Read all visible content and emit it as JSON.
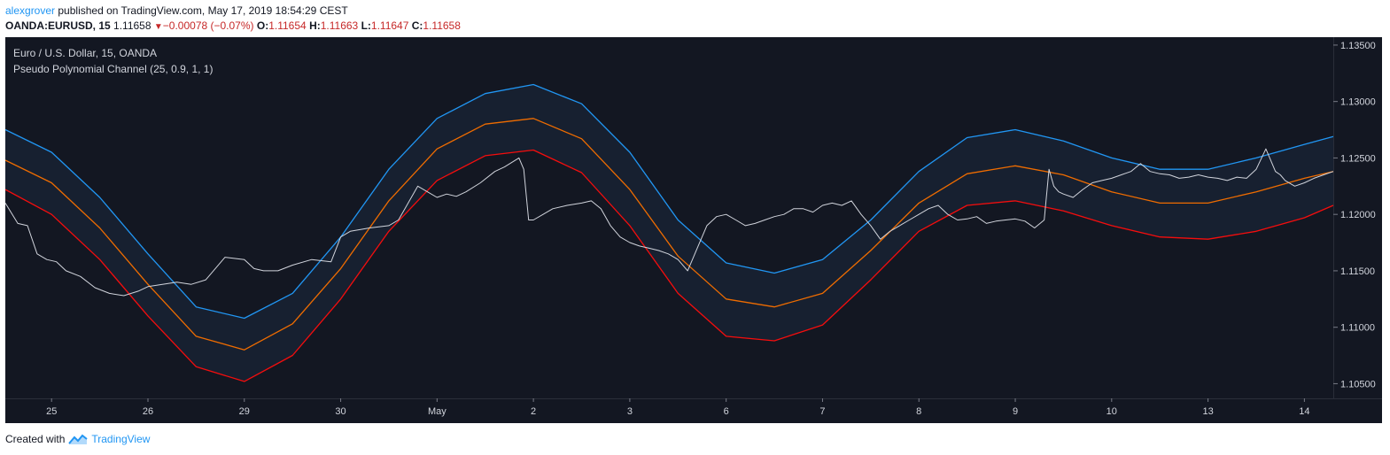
{
  "header": {
    "author": "alexgrover",
    "published_text": "published on TradingView.com, May 17, 2019 18:54:29 CEST"
  },
  "quote": {
    "symbol": "OANDA:EURUSD, 15",
    "last": "1.11658",
    "change": "−0.00078 (−0.07%)",
    "o_label": "O:",
    "o_value": "1.11654",
    "h_label": "H:",
    "h_value": "1.11663",
    "l_label": "L:",
    "l_value": "1.11647",
    "c_label": "C:",
    "c_value": "1.11658"
  },
  "legend": {
    "symbol": "Euro / U.S. Dollar, 15, OANDA",
    "indicator": "Pseudo Polynomial Channel (25, 0.9, 1, 1)"
  },
  "footer": {
    "created_with": "Created with",
    "brand": "TradingView"
  },
  "colors": {
    "background": "#131722",
    "channel_fill": "#172030",
    "upper": "#2196f3",
    "middle": "#ef6c00",
    "lower": "#f50d0d",
    "price": "#d1d4dc",
    "axis_text": "#d1d4dc"
  },
  "chart_data": {
    "type": "line",
    "title": "Euro / U.S. Dollar, 15, OANDA",
    "ylim": [
      1.1037,
      1.1357
    ],
    "y_ticks": [
      1.135,
      1.13,
      1.125,
      1.12,
      1.115,
      1.11,
      1.105
    ],
    "y_tick_labels": [
      "1.13500",
      "1.13000",
      "1.12500",
      "1.12000",
      "1.11500",
      "1.11000",
      "1.10500"
    ],
    "xlim": [
      -0.48,
      13.3
    ],
    "x_ticks": [
      {
        "x": 0,
        "label": "25"
      },
      {
        "x": 1,
        "label": "26"
      },
      {
        "x": 2,
        "label": "29"
      },
      {
        "x": 3,
        "label": "30"
      },
      {
        "x": 4,
        "label": "May"
      },
      {
        "x": 5,
        "label": "2"
      },
      {
        "x": 6,
        "label": "3"
      },
      {
        "x": 7,
        "label": "6"
      },
      {
        "x": 8,
        "label": "7"
      },
      {
        "x": 9,
        "label": "8"
      },
      {
        "x": 10,
        "label": "9"
      },
      {
        "x": 11,
        "label": "10"
      },
      {
        "x": 12,
        "label": "13"
      },
      {
        "x": 13,
        "label": "14"
      }
    ],
    "grid": false,
    "series": [
      {
        "name": "Upper",
        "x": [
          -0.48,
          0.0,
          0.5,
          1.0,
          1.5,
          2.0,
          2.5,
          3.0,
          3.5,
          4.0,
          4.5,
          5.0,
          5.5,
          6.0,
          6.5,
          7.0,
          7.5,
          8.0,
          8.5,
          9.0,
          9.5,
          10.0,
          10.5,
          11.0,
          11.5,
          12.0,
          12.5,
          13.0,
          13.3
        ],
        "y": [
          1.1275,
          1.1255,
          1.1215,
          1.1165,
          1.1118,
          1.1108,
          1.113,
          1.118,
          1.124,
          1.1285,
          1.1307,
          1.1315,
          1.1298,
          1.1255,
          1.1195,
          1.1157,
          1.1148,
          1.116,
          1.1195,
          1.1238,
          1.1268,
          1.1275,
          1.1265,
          1.125,
          1.124,
          1.124,
          1.125,
          1.1262,
          1.1269
        ]
      },
      {
        "name": "Middle",
        "x": [
          -0.48,
          0.0,
          0.5,
          1.0,
          1.5,
          2.0,
          2.5,
          3.0,
          3.5,
          4.0,
          4.5,
          5.0,
          5.5,
          6.0,
          6.5,
          7.0,
          7.5,
          8.0,
          8.5,
          9.0,
          9.5,
          10.0,
          10.5,
          11.0,
          11.5,
          12.0,
          12.5,
          13.0,
          13.3
        ],
        "y": [
          1.1248,
          1.1228,
          1.1188,
          1.1138,
          1.1092,
          1.108,
          1.1103,
          1.1152,
          1.1212,
          1.1258,
          1.128,
          1.1285,
          1.1267,
          1.1222,
          1.1163,
          1.1125,
          1.1118,
          1.113,
          1.1168,
          1.121,
          1.1236,
          1.1243,
          1.1235,
          1.122,
          1.121,
          1.121,
          1.122,
          1.1232,
          1.1238
        ]
      },
      {
        "name": "Lower",
        "x": [
          -0.48,
          0.0,
          0.5,
          1.0,
          1.5,
          2.0,
          2.5,
          3.0,
          3.5,
          4.0,
          4.5,
          5.0,
          5.5,
          6.0,
          6.5,
          7.0,
          7.5,
          8.0,
          8.5,
          9.0,
          9.5,
          10.0,
          10.5,
          11.0,
          11.5,
          12.0,
          12.5,
          13.0,
          13.3
        ],
        "y": [
          1.1222,
          1.12,
          1.116,
          1.111,
          1.1065,
          1.1052,
          1.1075,
          1.1125,
          1.1185,
          1.123,
          1.1252,
          1.1257,
          1.1237,
          1.119,
          1.113,
          1.1092,
          1.1088,
          1.1102,
          1.1142,
          1.1185,
          1.1208,
          1.1212,
          1.1203,
          1.119,
          1.118,
          1.1178,
          1.1185,
          1.1197,
          1.1208
        ]
      },
      {
        "name": "EURUSD",
        "x": [
          -0.48,
          -0.35,
          -0.25,
          -0.15,
          -0.05,
          0.05,
          0.15,
          0.3,
          0.45,
          0.6,
          0.75,
          0.9,
          1.0,
          1.15,
          1.3,
          1.45,
          1.6,
          1.8,
          2.0,
          2.1,
          2.2,
          2.35,
          2.5,
          2.7,
          2.9,
          3.0,
          3.1,
          3.3,
          3.5,
          3.6,
          3.7,
          3.8,
          3.9,
          4.0,
          4.1,
          4.2,
          4.3,
          4.45,
          4.6,
          4.7,
          4.85,
          4.9,
          4.95,
          5.0,
          5.1,
          5.2,
          5.35,
          5.5,
          5.6,
          5.7,
          5.8,
          5.9,
          6.0,
          6.1,
          6.2,
          6.3,
          6.4,
          6.5,
          6.6,
          6.7,
          6.8,
          6.9,
          7.0,
          7.1,
          7.2,
          7.3,
          7.4,
          7.5,
          7.6,
          7.7,
          7.8,
          7.9,
          8.0,
          8.1,
          8.2,
          8.3,
          8.4,
          8.5,
          8.6,
          8.7,
          8.8,
          8.9,
          9.0,
          9.1,
          9.2,
          9.3,
          9.4,
          9.5,
          9.6,
          9.7,
          9.8,
          9.9,
          10.0,
          10.1,
          10.2,
          10.3,
          10.35,
          10.4,
          10.45,
          10.5,
          10.6,
          10.7,
          10.8,
          10.9,
          11.0,
          11.1,
          11.2,
          11.3,
          11.4,
          11.5,
          11.6,
          11.7,
          11.8,
          11.9,
          12.0,
          12.1,
          12.2,
          12.3,
          12.4,
          12.5,
          12.6,
          12.7,
          12.75,
          12.8,
          12.9,
          13.0,
          13.1,
          13.2,
          13.3
        ],
        "y": [
          1.121,
          1.1192,
          1.119,
          1.1165,
          1.116,
          1.1158,
          1.115,
          1.1145,
          1.1135,
          1.113,
          1.1128,
          1.1132,
          1.1136,
          1.1138,
          1.114,
          1.1138,
          1.1142,
          1.1162,
          1.116,
          1.1152,
          1.115,
          1.115,
          1.1155,
          1.116,
          1.1158,
          1.118,
          1.1185,
          1.1188,
          1.119,
          1.1195,
          1.121,
          1.1225,
          1.122,
          1.1215,
          1.1218,
          1.1216,
          1.122,
          1.1228,
          1.1238,
          1.1242,
          1.125,
          1.124,
          1.1195,
          1.1195,
          1.12,
          1.1205,
          1.1208,
          1.121,
          1.1212,
          1.1205,
          1.119,
          1.118,
          1.1175,
          1.1172,
          1.117,
          1.1168,
          1.1165,
          1.116,
          1.115,
          1.117,
          1.119,
          1.1198,
          1.12,
          1.1195,
          1.119,
          1.1192,
          1.1195,
          1.1198,
          1.12,
          1.1205,
          1.1205,
          1.1202,
          1.1208,
          1.121,
          1.1208,
          1.1212,
          1.12,
          1.119,
          1.1178,
          1.1185,
          1.119,
          1.1195,
          1.12,
          1.1205,
          1.1208,
          1.12,
          1.1195,
          1.1196,
          1.1198,
          1.1192,
          1.1194,
          1.1195,
          1.1196,
          1.1194,
          1.1188,
          1.1195,
          1.124,
          1.1225,
          1.122,
          1.1218,
          1.1215,
          1.1222,
          1.1228,
          1.123,
          1.1232,
          1.1235,
          1.1238,
          1.1245,
          1.1238,
          1.1236,
          1.1235,
          1.1232,
          1.1233,
          1.1235,
          1.1233,
          1.1232,
          1.123,
          1.1233,
          1.1232,
          1.124,
          1.1258,
          1.1238,
          1.1235,
          1.123,
          1.1225,
          1.1228,
          1.1232,
          1.1235,
          1.1238
        ]
      }
    ]
  }
}
